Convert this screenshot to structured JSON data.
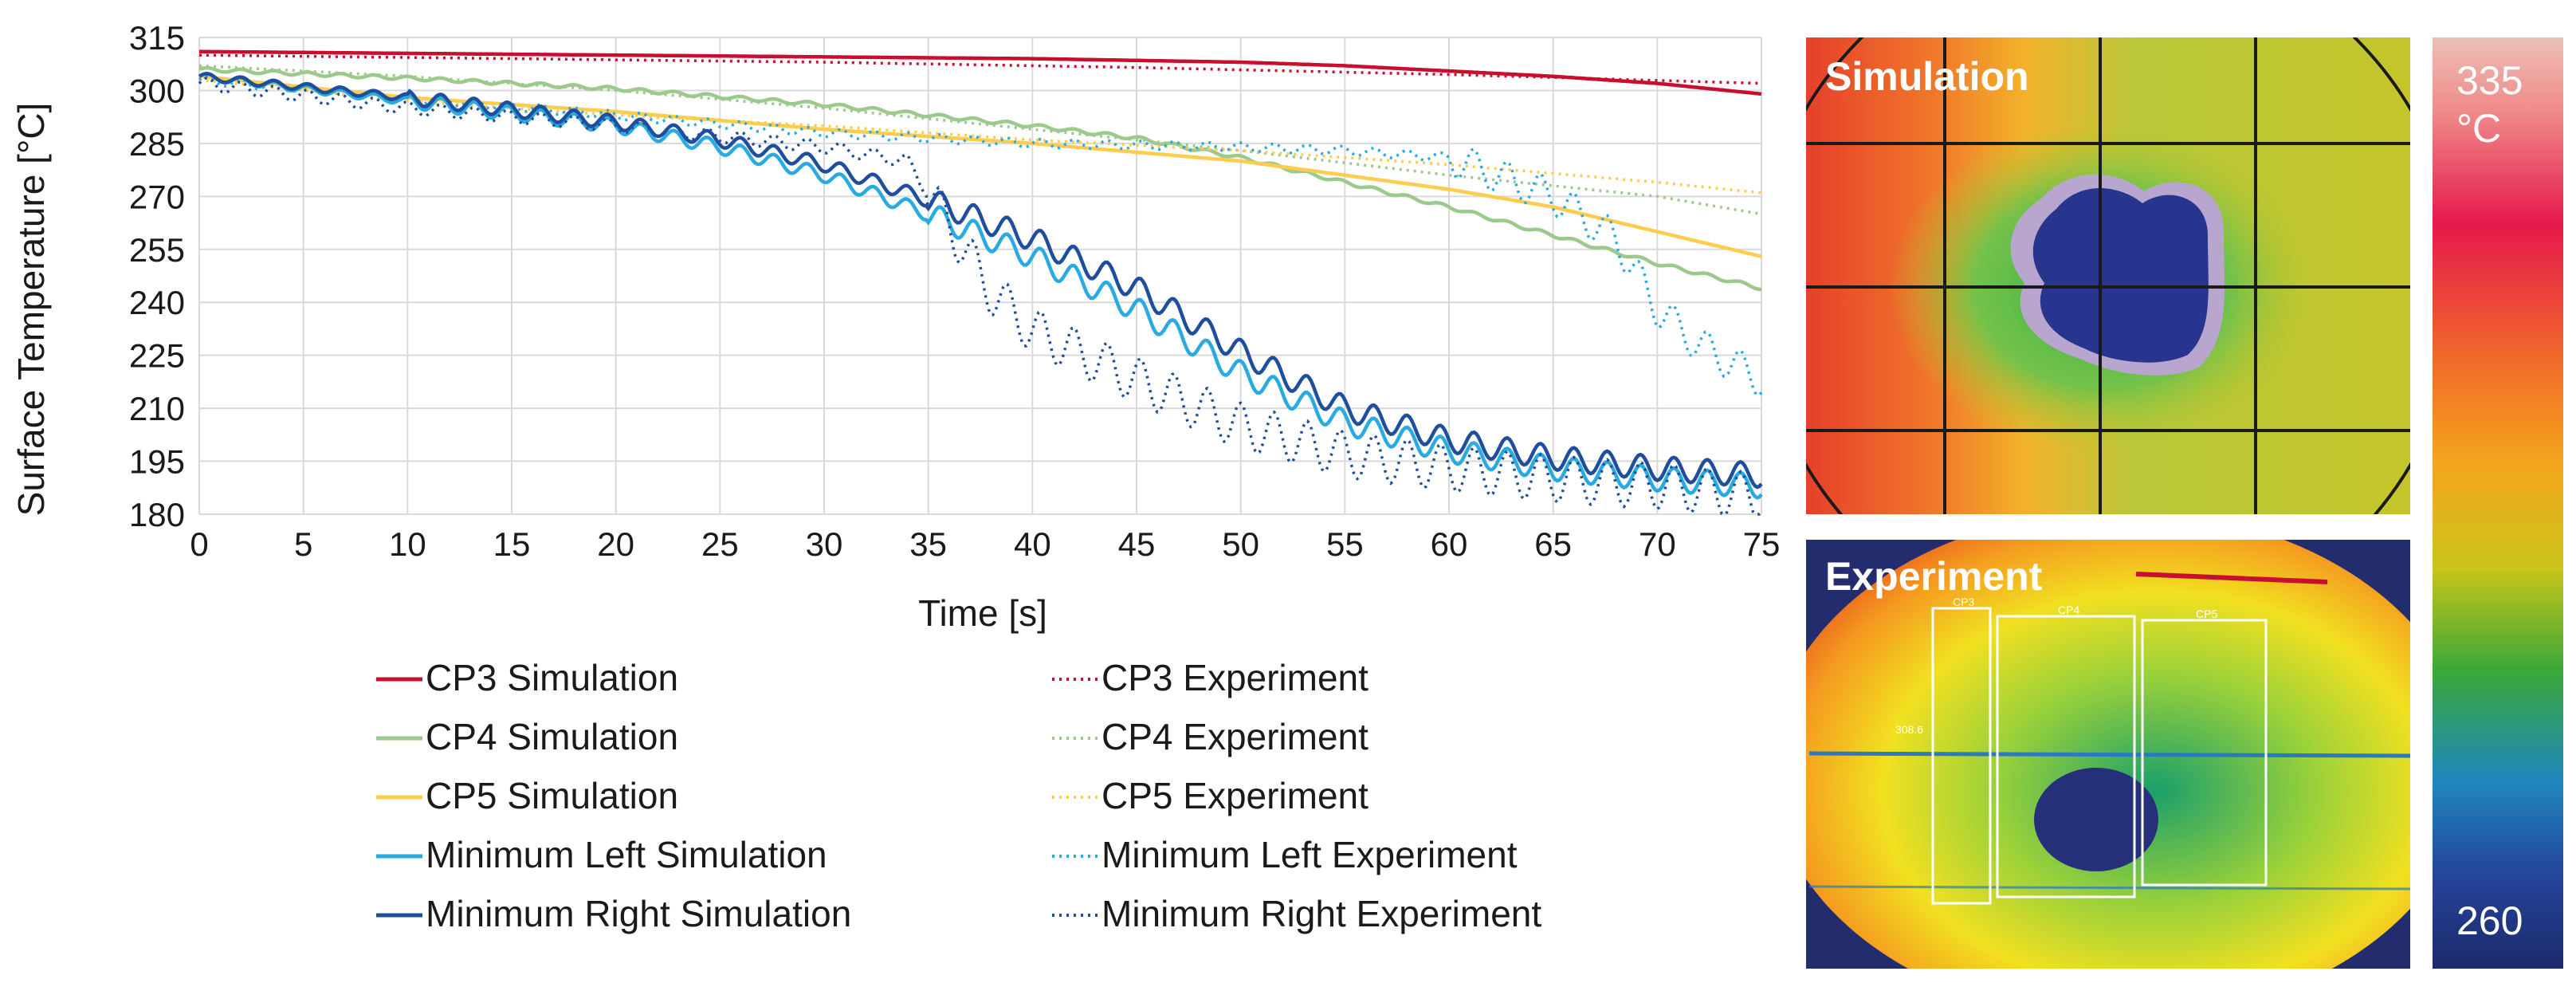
{
  "chart_data": {
    "type": "line",
    "xlabel": "Time [s]",
    "ylabel": "Surface Temperature [°C]",
    "xlim": [
      0,
      75
    ],
    "ylim": [
      180,
      315
    ],
    "xticks": [
      0,
      5,
      10,
      15,
      20,
      25,
      30,
      35,
      40,
      45,
      50,
      55,
      60,
      65,
      70,
      75
    ],
    "yticks": [
      180,
      195,
      210,
      225,
      240,
      255,
      270,
      285,
      300,
      315
    ],
    "grid": true,
    "legend_position": "bottom",
    "series": [
      {
        "name": "CP3 Simulation",
        "color": "#c8102e",
        "style": "solid",
        "x": [
          0,
          10,
          20,
          30,
          40,
          50,
          55,
          60,
          65,
          70,
          75
        ],
        "y": [
          311,
          310.5,
          310,
          309.5,
          309,
          308,
          307,
          305.5,
          304,
          302,
          299
        ]
      },
      {
        "name": "CP3 Experiment",
        "color": "#c8102e",
        "style": "dotted",
        "x": [
          0,
          15,
          30,
          45,
          60,
          75
        ],
        "y": [
          310,
          309,
          308,
          306.5,
          304.5,
          302
        ]
      },
      {
        "name": "CP4 Simulation",
        "color": "#9cc98c",
        "style": "solid",
        "x": [
          0,
          10,
          20,
          30,
          40,
          45,
          50,
          55,
          60,
          65,
          70,
          75
        ],
        "y": [
          306,
          303.5,
          300.5,
          296,
          290,
          286.5,
          281,
          274,
          267,
          259,
          251,
          244
        ]
      },
      {
        "name": "CP4 Experiment",
        "color": "#9cc98c",
        "style": "dotted",
        "x": [
          0,
          10,
          20,
          30,
          40,
          50,
          60,
          70,
          75
        ],
        "y": [
          307,
          304,
          300,
          295,
          289,
          283,
          276,
          270,
          265
        ]
      },
      {
        "name": "CP5 Simulation",
        "color": "#ffcc4d",
        "style": "solid",
        "x": [
          0,
          10,
          20,
          30,
          40,
          50,
          60,
          65,
          70,
          75
        ],
        "y": [
          304,
          298,
          294,
          289,
          285,
          280,
          272,
          267,
          260,
          253
        ]
      },
      {
        "name": "CP5 Experiment",
        "color": "#ffcc4d",
        "style": "dotted",
        "x": [
          0,
          10,
          20,
          30,
          40,
          50,
          60,
          70,
          75
        ],
        "y": [
          303,
          297,
          293,
          290,
          286,
          283,
          279,
          274,
          271
        ]
      },
      {
        "name": "Minimum Left Simulation",
        "color": "#29abe2",
        "style": "solid",
        "x": [
          0,
          10,
          20,
          25,
          30,
          35,
          40,
          45,
          50,
          55,
          60,
          65,
          70,
          75
        ],
        "y": [
          304,
          297,
          290,
          284,
          276,
          265,
          253,
          238,
          220,
          206,
          198,
          193,
          190,
          188
        ]
      },
      {
        "name": "Minimum Left Experiment",
        "color": "#29abe2",
        "style": "dotted",
        "x": [
          0,
          10,
          20,
          30,
          40,
          50,
          55,
          60,
          65,
          68,
          70,
          72,
          75
        ],
        "y": [
          303,
          298,
          293,
          288,
          285,
          284,
          283,
          281,
          270,
          258,
          238,
          228,
          218
        ]
      },
      {
        "name": "Minimum Right Simulation",
        "color": "#1f4e9c",
        "style": "solid",
        "x": [
          0,
          10,
          20,
          25,
          30,
          35,
          40,
          45,
          50,
          55,
          60,
          65,
          70,
          75
        ],
        "y": [
          304,
          298,
          291,
          286,
          279,
          269,
          258,
          244,
          226,
          210,
          201,
          196,
          193,
          191
        ]
      },
      {
        "name": "Minimum Right Experiment",
        "color": "#1f4e9c",
        "style": "dotted",
        "x": [
          0,
          10,
          20,
          30,
          34,
          36,
          38,
          40,
          45,
          50,
          55,
          60,
          65,
          70,
          75
        ],
        "y": [
          302,
          295,
          290,
          284,
          280,
          262,
          243,
          232,
          218,
          205,
          197,
          193,
          190,
          188,
          185
        ]
      }
    ],
    "legend_simulation": [
      "CP3 Simulation",
      "CP4 Simulation",
      "CP5 Simulation",
      "Minimum Left Simulation",
      "Minimum Right Simulation"
    ],
    "legend_experiment": [
      "CP3 Experiment",
      "CP4 Experiment",
      "CP5 Experiment",
      "Minimum Left Experiment",
      "Minimum Right Experiment"
    ]
  },
  "panels": {
    "simulation_title": "Simulation",
    "experiment_title": "Experiment",
    "experiment_labels": {
      "cp3": "CP3",
      "cp4": "CP4",
      "cp5": "CP5",
      "value": "308.6"
    }
  },
  "colorbar": {
    "max_label": "335",
    "unit": "°C",
    "min_label": "260"
  }
}
